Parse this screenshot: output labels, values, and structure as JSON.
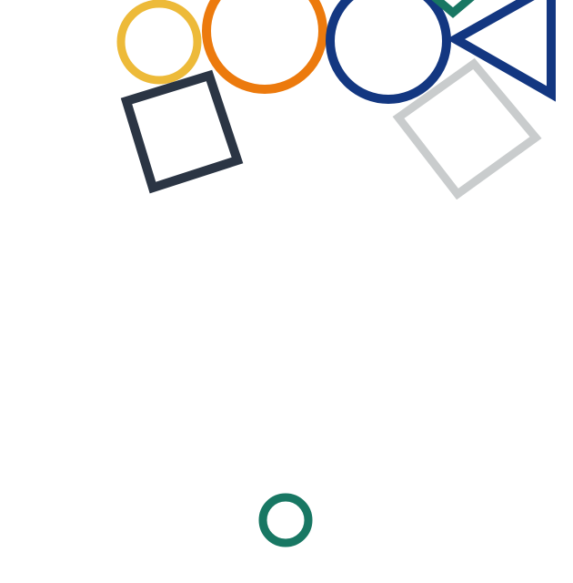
{
  "shapes": [
    {
      "name": "yellow-circle",
      "kind": "circle",
      "color": "#EDBA39"
    },
    {
      "name": "orange-circle",
      "kind": "circle",
      "color": "#EC7A0D"
    },
    {
      "name": "navy-circle",
      "kind": "circle",
      "color": "#133781"
    },
    {
      "name": "navy-triangle",
      "kind": "triangle",
      "color": "#133781"
    },
    {
      "name": "teal-diamond",
      "kind": "square",
      "color": "#187763"
    },
    {
      "name": "gray-square",
      "kind": "square",
      "color": "#C9CCCD"
    },
    {
      "name": "charcoal-square",
      "kind": "square",
      "color": "#2B3544"
    },
    {
      "name": "teal-circle",
      "kind": "circle",
      "color": "#187763"
    }
  ]
}
